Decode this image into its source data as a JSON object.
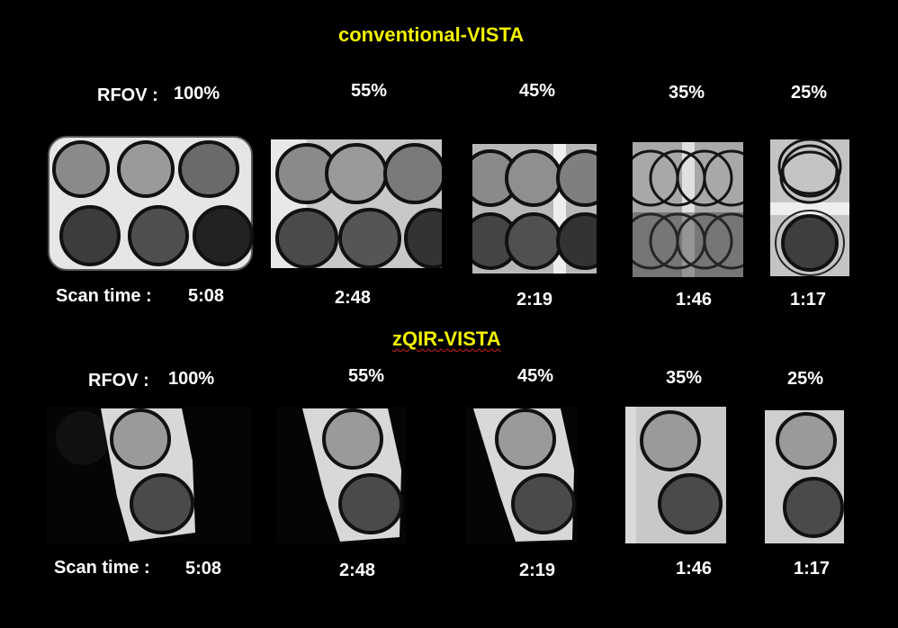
{
  "sections": [
    {
      "title": "conventional-VISTA",
      "rfov_label": "RFOV :",
      "rfov_values": [
        "100%",
        "55%",
        "45%",
        "35%",
        "25%"
      ],
      "scan_label": "Scan time :",
      "scan_times": [
        "5:08",
        "2:48",
        "2:19",
        "1:46",
        "1:17"
      ]
    },
    {
      "title": "zQIR-VISTA",
      "rfov_label": "RFOV :",
      "rfov_values": [
        "100%",
        "55%",
        "45%",
        "35%",
        "25%"
      ],
      "scan_label": "Scan time :",
      "scan_times": [
        "5:08",
        "2:48",
        "2:19",
        "1:46",
        "1:17"
      ]
    }
  ],
  "colors": {
    "background": "#000000",
    "title": "#f2f200",
    "text": "#ffffff"
  }
}
